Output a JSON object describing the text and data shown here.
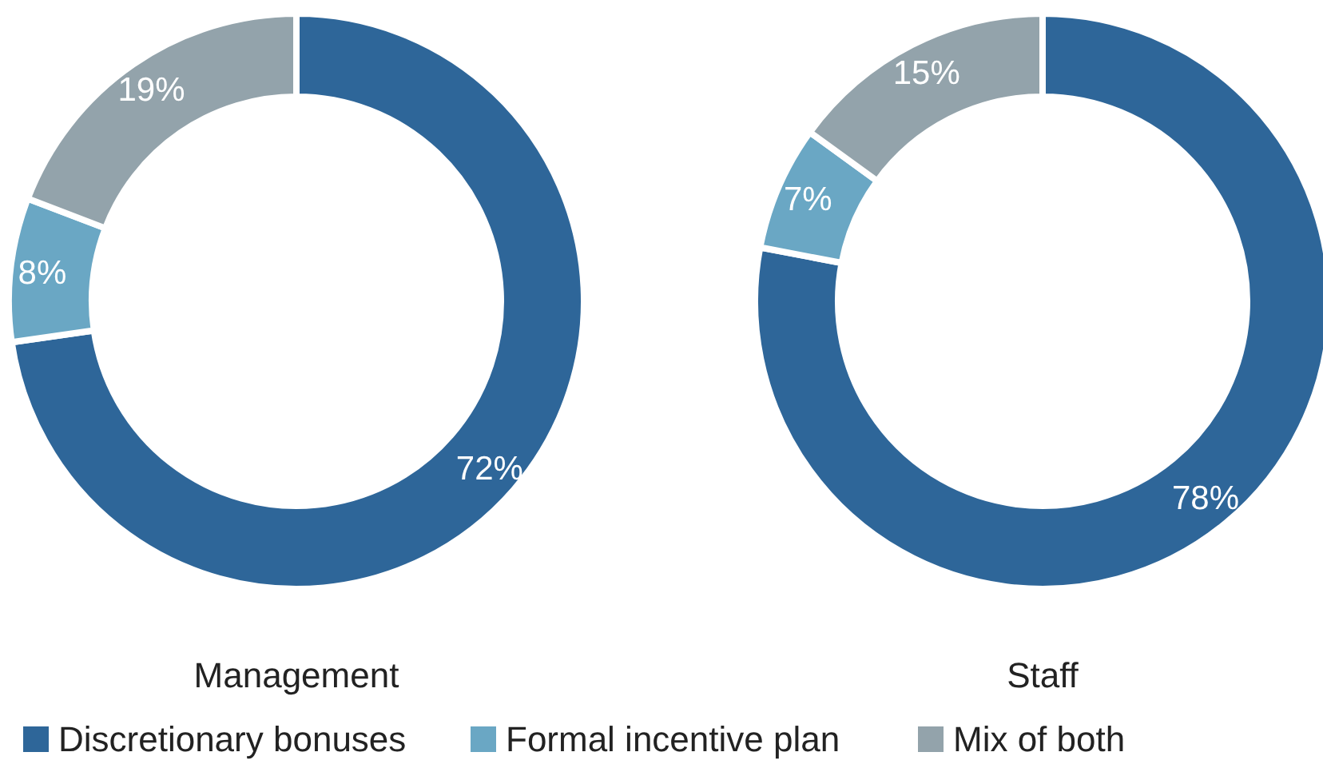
{
  "chart_data": [
    {
      "type": "donut",
      "title": "Management",
      "categories": [
        "Discretionary bonuses",
        "Formal incentive plan",
        "Mix of both"
      ],
      "values": [
        72,
        8,
        19
      ],
      "value_labels": [
        "72%",
        "8%",
        "19%"
      ],
      "colors": [
        "#2e6699",
        "#6aa7c4",
        "#93a3ab"
      ],
      "legend": "bottom"
    },
    {
      "type": "donut",
      "title": "Staff",
      "categories": [
        null,
        null,
        null
      ],
      "values": [
        78,
        7,
        15
      ],
      "value_labels": [
        "78%",
        "7%",
        "15%"
      ],
      "colors": [
        "#2e6699",
        "#6aa7c4",
        "#93a3ab"
      ]
    }
  ]
}
